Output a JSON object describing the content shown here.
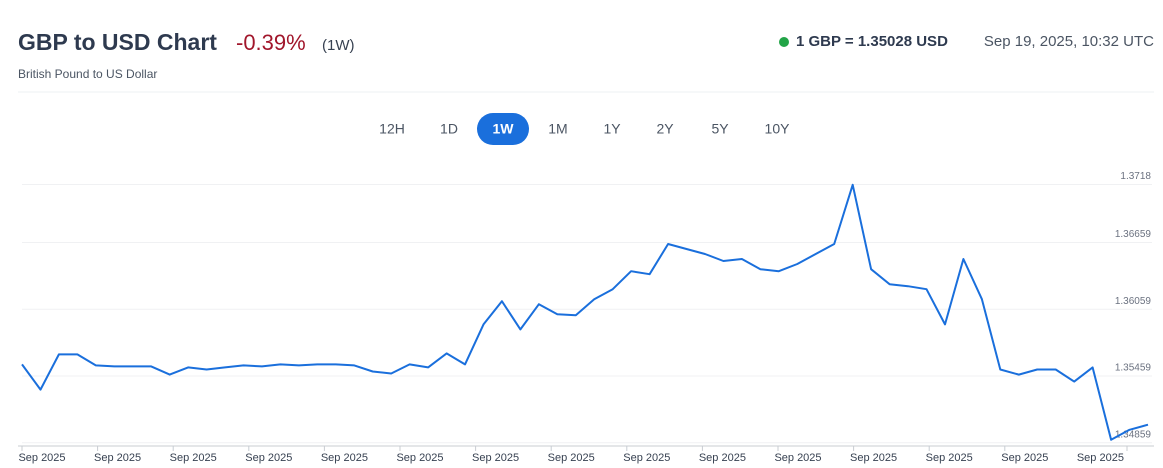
{
  "header": {
    "title": "GBP to USD Chart",
    "change": "-0.39%",
    "period": "(1W)",
    "subtitle": "British Pound to US Dollar",
    "rate": "1 GBP = 1.35028 USD",
    "timestamp": "Sep 19, 2025, 10:32 UTC"
  },
  "tabs": [
    {
      "label": "12H",
      "active": false
    },
    {
      "label": "1D",
      "active": false
    },
    {
      "label": "1W",
      "active": true
    },
    {
      "label": "1M",
      "active": false
    },
    {
      "label": "1Y",
      "active": false
    },
    {
      "label": "2Y",
      "active": false
    },
    {
      "label": "5Y",
      "active": false
    },
    {
      "label": "10Y",
      "active": false
    }
  ],
  "chart_data": {
    "type": "line",
    "color": "#1a6fdc",
    "grid": true,
    "values": [
      1.35563,
      1.35337,
      1.35653,
      1.35653,
      1.35554,
      1.35545,
      1.35545,
      1.35545,
      1.35472,
      1.35536,
      1.35517,
      1.35536,
      1.35554,
      1.35545,
      1.35563,
      1.35554,
      1.35563,
      1.35563,
      1.35554,
      1.35499,
      1.35481,
      1.35563,
      1.35536,
      1.35662,
      1.35563,
      1.35923,
      1.36131,
      1.35878,
      1.36104,
      1.36014,
      1.36005,
      1.36149,
      1.36239,
      1.36401,
      1.36374,
      1.36645,
      1.366,
      1.36555,
      1.36492,
      1.3651,
      1.36419,
      1.36401,
      1.36465,
      1.36555,
      1.36645,
      1.37177,
      1.36419,
      1.36284,
      1.36266,
      1.36239,
      1.35923,
      1.3651,
      1.36149,
      1.35517,
      1.35472,
      1.35517,
      1.35517,
      1.35409,
      1.35536,
      1.34886,
      1.34976,
      1.35021
    ],
    "ylim": [
      1.3483,
      1.3731
    ],
    "yticks": [
      1.34859,
      1.35459,
      1.36059,
      1.36659,
      1.3718
    ],
    "xtick_labels": [
      "Sep 2025",
      "Sep 2025",
      "Sep 2025",
      "Sep 2025",
      "Sep 2025",
      "Sep 2025",
      "Sep 2025",
      "Sep 2025",
      "Sep 2025",
      "Sep 2025",
      "Sep 2025",
      "Sep 2025",
      "Sep 2025",
      "Sep 2025",
      "Sep 2025"
    ]
  }
}
